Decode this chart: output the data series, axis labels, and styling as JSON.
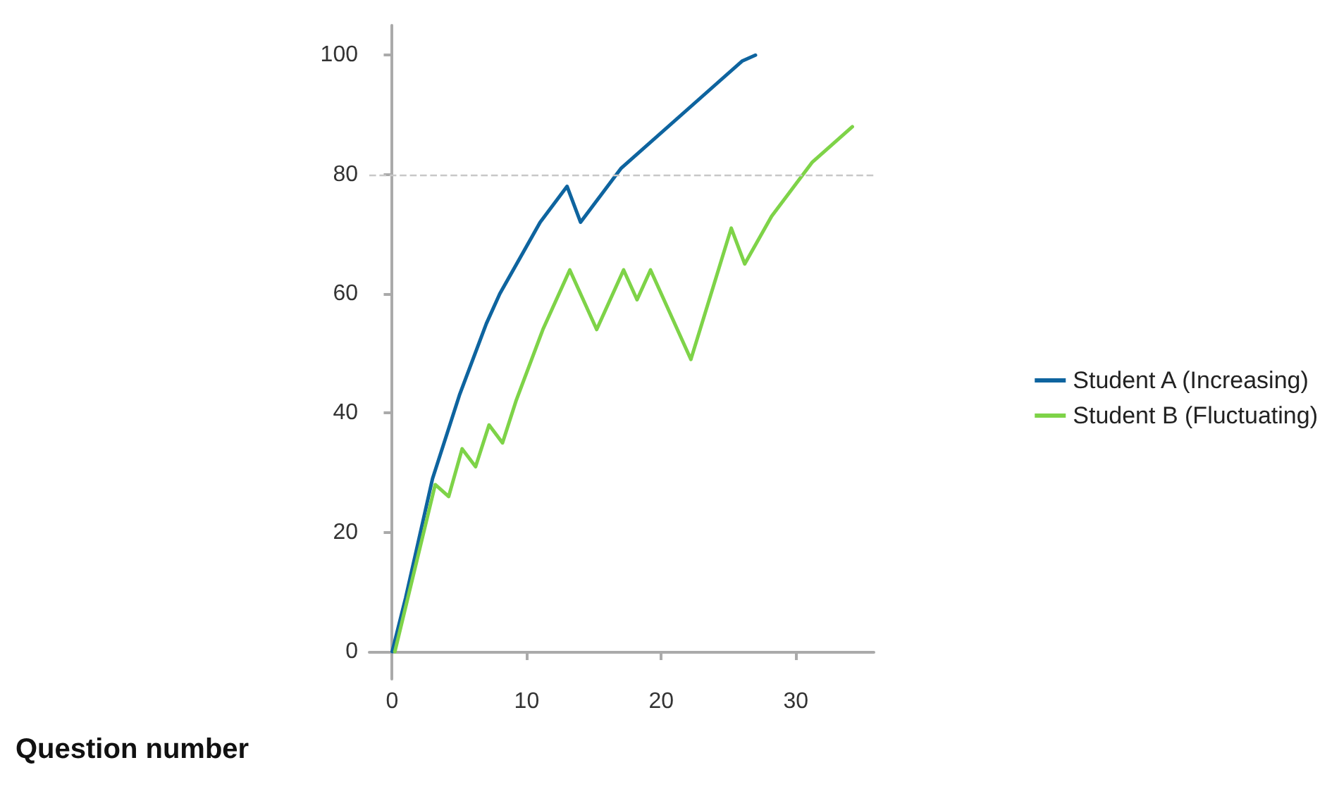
{
  "chart_data": {
    "type": "line",
    "xlabel": "Question number",
    "xlim": [
      -1.7,
      35.8
    ],
    "ylim": [
      -4.6,
      105
    ],
    "xticks": [
      0,
      10,
      20,
      30
    ],
    "yticks": [
      0,
      20,
      40,
      60,
      80,
      100
    ],
    "grid": false,
    "legend": "right",
    "marker": "none",
    "line_style": "solid",
    "ref_lines": [
      {
        "axis": "y",
        "value": 80,
        "color": "#c8c8c8",
        "line_style": "dashed"
      }
    ],
    "series": [
      {
        "name": "Student A (Increasing)",
        "color": "#0e649f",
        "x": [
          0,
          1,
          3,
          4,
          5,
          7,
          8,
          11,
          13,
          14,
          17,
          26,
          27
        ],
        "values": [
          0,
          9,
          29,
          36,
          43,
          55,
          60,
          72,
          78,
          72,
          81,
          99,
          100
        ]
      },
      {
        "name": "Student B (Fluctuating)",
        "color": "#7ed348",
        "x": [
          0.2,
          3.2,
          4.2,
          5.2,
          6.2,
          7.2,
          8.2,
          9.2,
          11.2,
          13.2,
          15.2,
          17.2,
          18.2,
          19.2,
          22.2,
          25.2,
          26.2,
          28.2,
          31.2,
          34.2
        ],
        "values": [
          0,
          28,
          26,
          34,
          31,
          38,
          35,
          42,
          54,
          64,
          54,
          64,
          59,
          64,
          49,
          71,
          65,
          73,
          82,
          88
        ]
      }
    ]
  }
}
